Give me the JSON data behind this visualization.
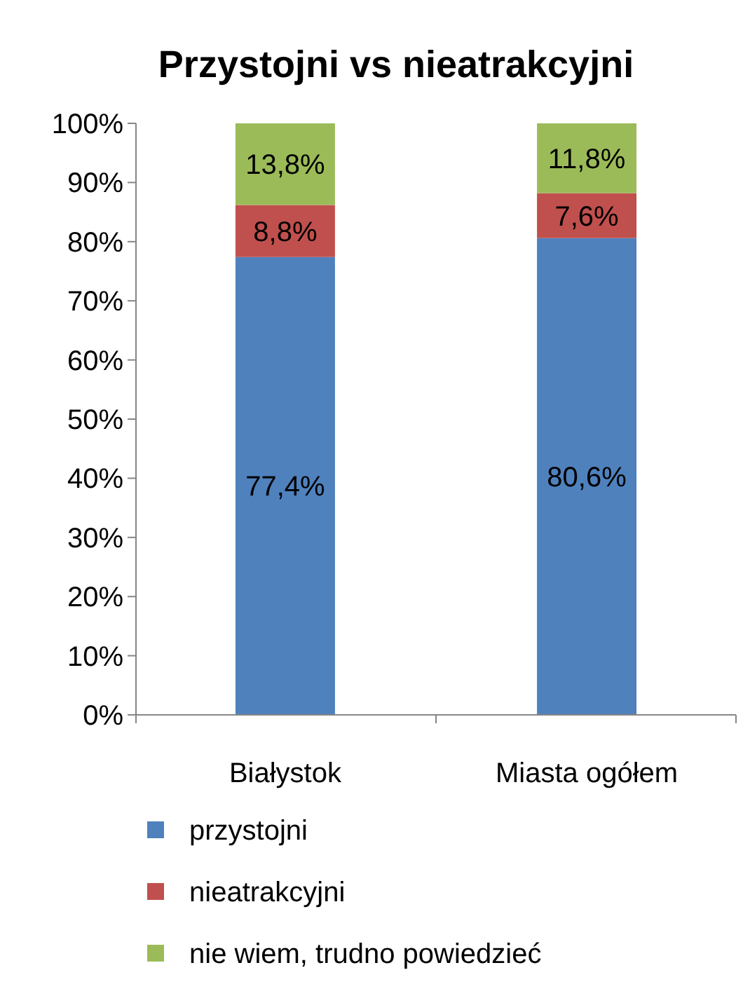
{
  "chart_data": {
    "type": "bar",
    "title": "Przystojni vs nieatrakcyjni",
    "categories": [
      "Białystok",
      "Miasta ogółem"
    ],
    "stacked": true,
    "series": [
      {
        "name": "przystojni",
        "color": "#4f81bd",
        "values": [
          77.4,
          80.6
        ],
        "value_labels": [
          "77,4%",
          "80,6%"
        ]
      },
      {
        "name": "nieatrakcyjni",
        "color": "#c0504d",
        "values": [
          8.8,
          7.6
        ],
        "value_labels": [
          "8,8%",
          "7,6%"
        ]
      },
      {
        "name": "nie wiem, trudno powiedzieć",
        "color": "#9bbb59",
        "values": [
          13.8,
          11.8
        ],
        "value_labels": [
          "13,8%",
          "11,8%"
        ]
      }
    ],
    "ylim": [
      0,
      100
    ],
    "yticks": [
      {
        "value": 0,
        "label": "0%"
      },
      {
        "value": 10,
        "label": "10%"
      },
      {
        "value": 20,
        "label": "20%"
      },
      {
        "value": 30,
        "label": "30%"
      },
      {
        "value": 40,
        "label": "40%"
      },
      {
        "value": 50,
        "label": "50%"
      },
      {
        "value": 60,
        "label": "60%"
      },
      {
        "value": 70,
        "label": "70%"
      },
      {
        "value": 80,
        "label": "80%"
      },
      {
        "value": 90,
        "label": "90%"
      },
      {
        "value": 100,
        "label": "100%"
      }
    ],
    "grid": false,
    "legend": "bottom"
  }
}
